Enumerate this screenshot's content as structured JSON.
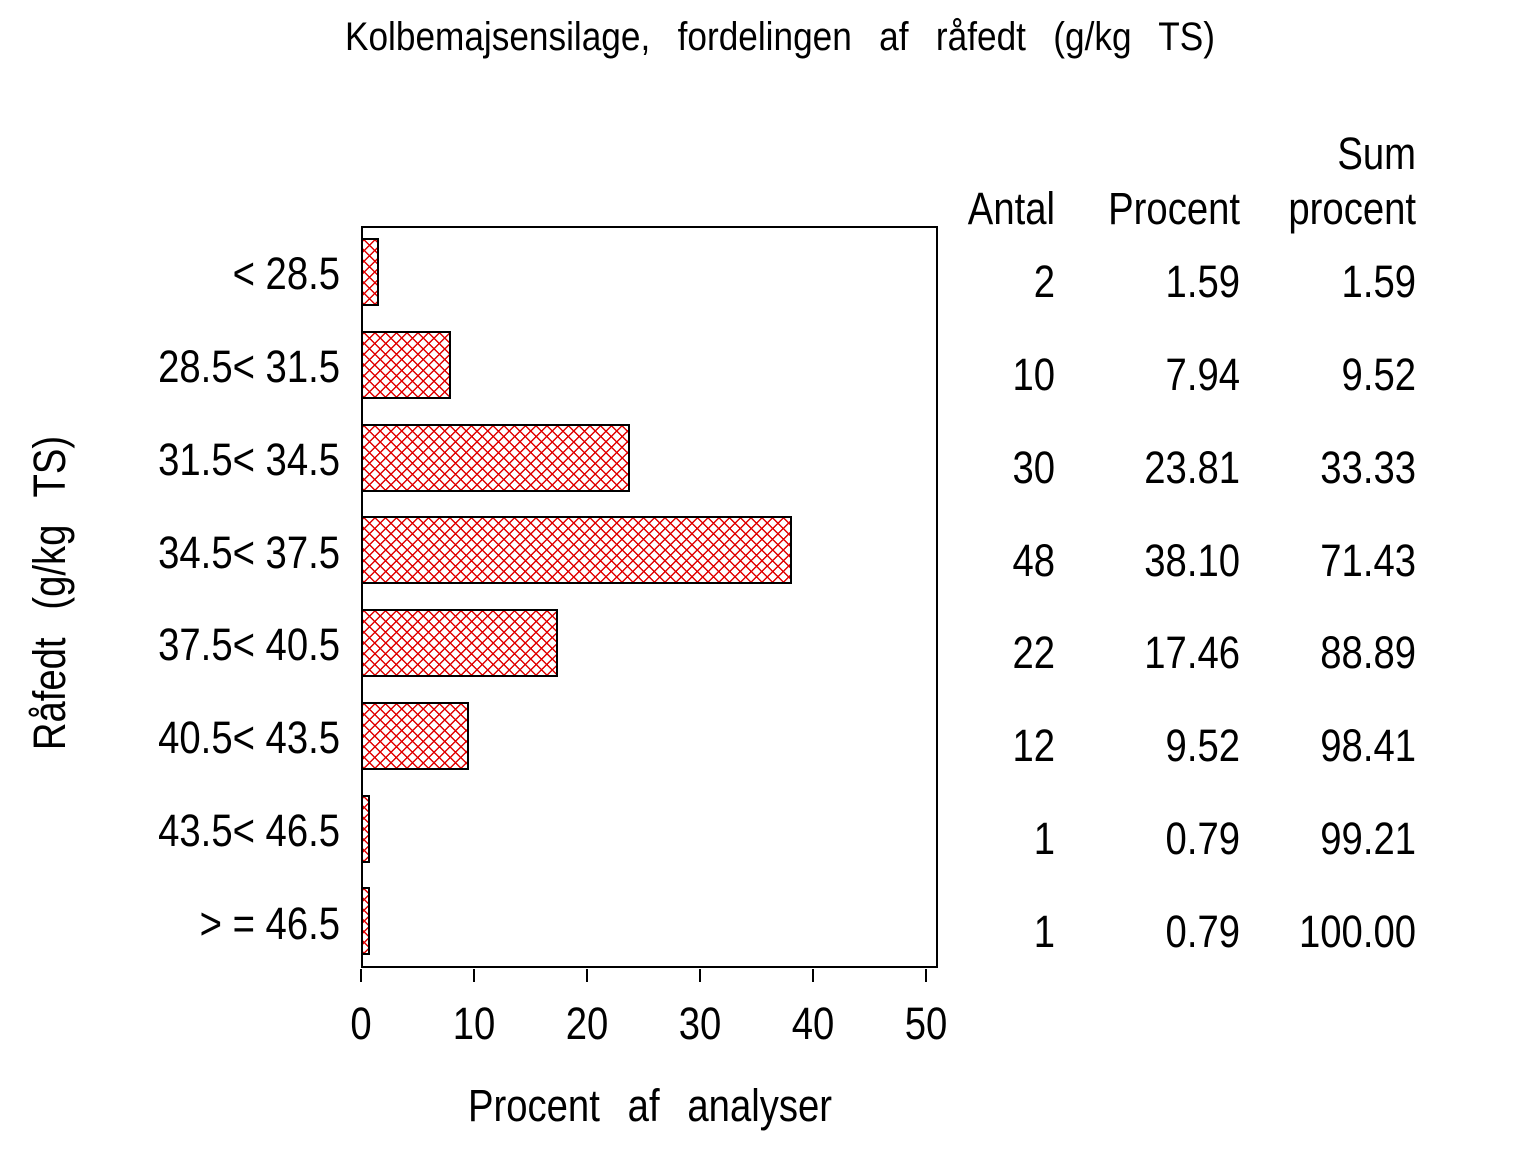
{
  "chart_data": {
    "type": "bar",
    "orientation": "horizontal",
    "title": "Kolbemajsensilage, fordelingen af råfedt (g/kg TS)",
    "xlabel": "Procent af analyser",
    "ylabel": "Råfedt (g/kg TS)",
    "categories": [
      "< 28.5",
      "28.5< 31.5",
      "31.5< 34.5",
      "34.5< 37.5",
      "37.5< 40.5",
      "40.5< 43.5",
      "43.5< 46.5",
      "> = 46.5"
    ],
    "values": [
      1.59,
      7.94,
      23.81,
      38.1,
      17.46,
      9.52,
      0.79,
      0.79
    ],
    "xlim": [
      0,
      50
    ],
    "xticks": [
      "0",
      "10",
      "20",
      "30",
      "40",
      "50"
    ],
    "grid": false,
    "bar_color": "#e00000",
    "bar_pattern": "crosshatch",
    "bar_outline_color": "#000000"
  },
  "table": {
    "headers": {
      "antal": "Antal",
      "procent": "Procent",
      "sum_line1": "Sum",
      "sum_line2": "procent"
    },
    "rows": [
      {
        "antal": "2",
        "procent": "1.59",
        "sum_procent": "1.59"
      },
      {
        "antal": "10",
        "procent": "7.94",
        "sum_procent": "9.52"
      },
      {
        "antal": "30",
        "procent": "23.81",
        "sum_procent": "33.33"
      },
      {
        "antal": "48",
        "procent": "38.10",
        "sum_procent": "71.43"
      },
      {
        "antal": "22",
        "procent": "17.46",
        "sum_procent": "88.89"
      },
      {
        "antal": "12",
        "procent": "9.52",
        "sum_procent": "98.41"
      },
      {
        "antal": "1",
        "procent": "0.79",
        "sum_procent": "99.21"
      },
      {
        "antal": "1",
        "procent": "0.79",
        "sum_procent": "100.00"
      }
    ]
  }
}
